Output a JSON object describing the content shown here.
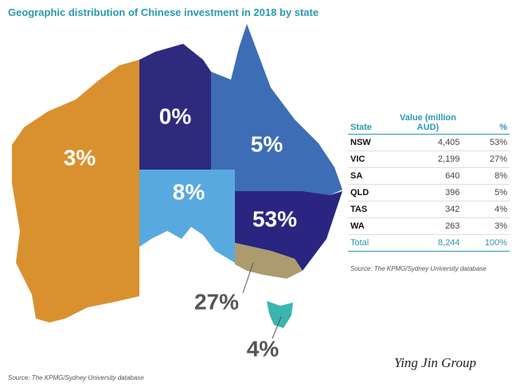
{
  "title": "Geographic distribution of Chinese investment in 2018 by state",
  "map": {
    "labels": [
      "3%",
      "0%",
      "5%",
      "8%",
      "53%",
      "27%",
      "4%"
    ]
  },
  "table": {
    "columns": [
      "State",
      "Value (million AUD)",
      "%"
    ],
    "rows": [
      [
        "NSW",
        "4,405",
        "53%"
      ],
      [
        "VIC",
        "2,199",
        "27%"
      ],
      [
        "SA",
        "640",
        "8%"
      ],
      [
        "QLD",
        "396",
        "5%"
      ],
      [
        "TAS",
        "342",
        "4%"
      ],
      [
        "WA",
        "263",
        "3%"
      ]
    ],
    "total": [
      "Total",
      "8,244",
      "100%"
    ],
    "source": "Source: The KPMG/Sydney University database"
  },
  "source": "Source: The KPMG/Sydney University database",
  "watermark": "Ying Jin Group"
}
